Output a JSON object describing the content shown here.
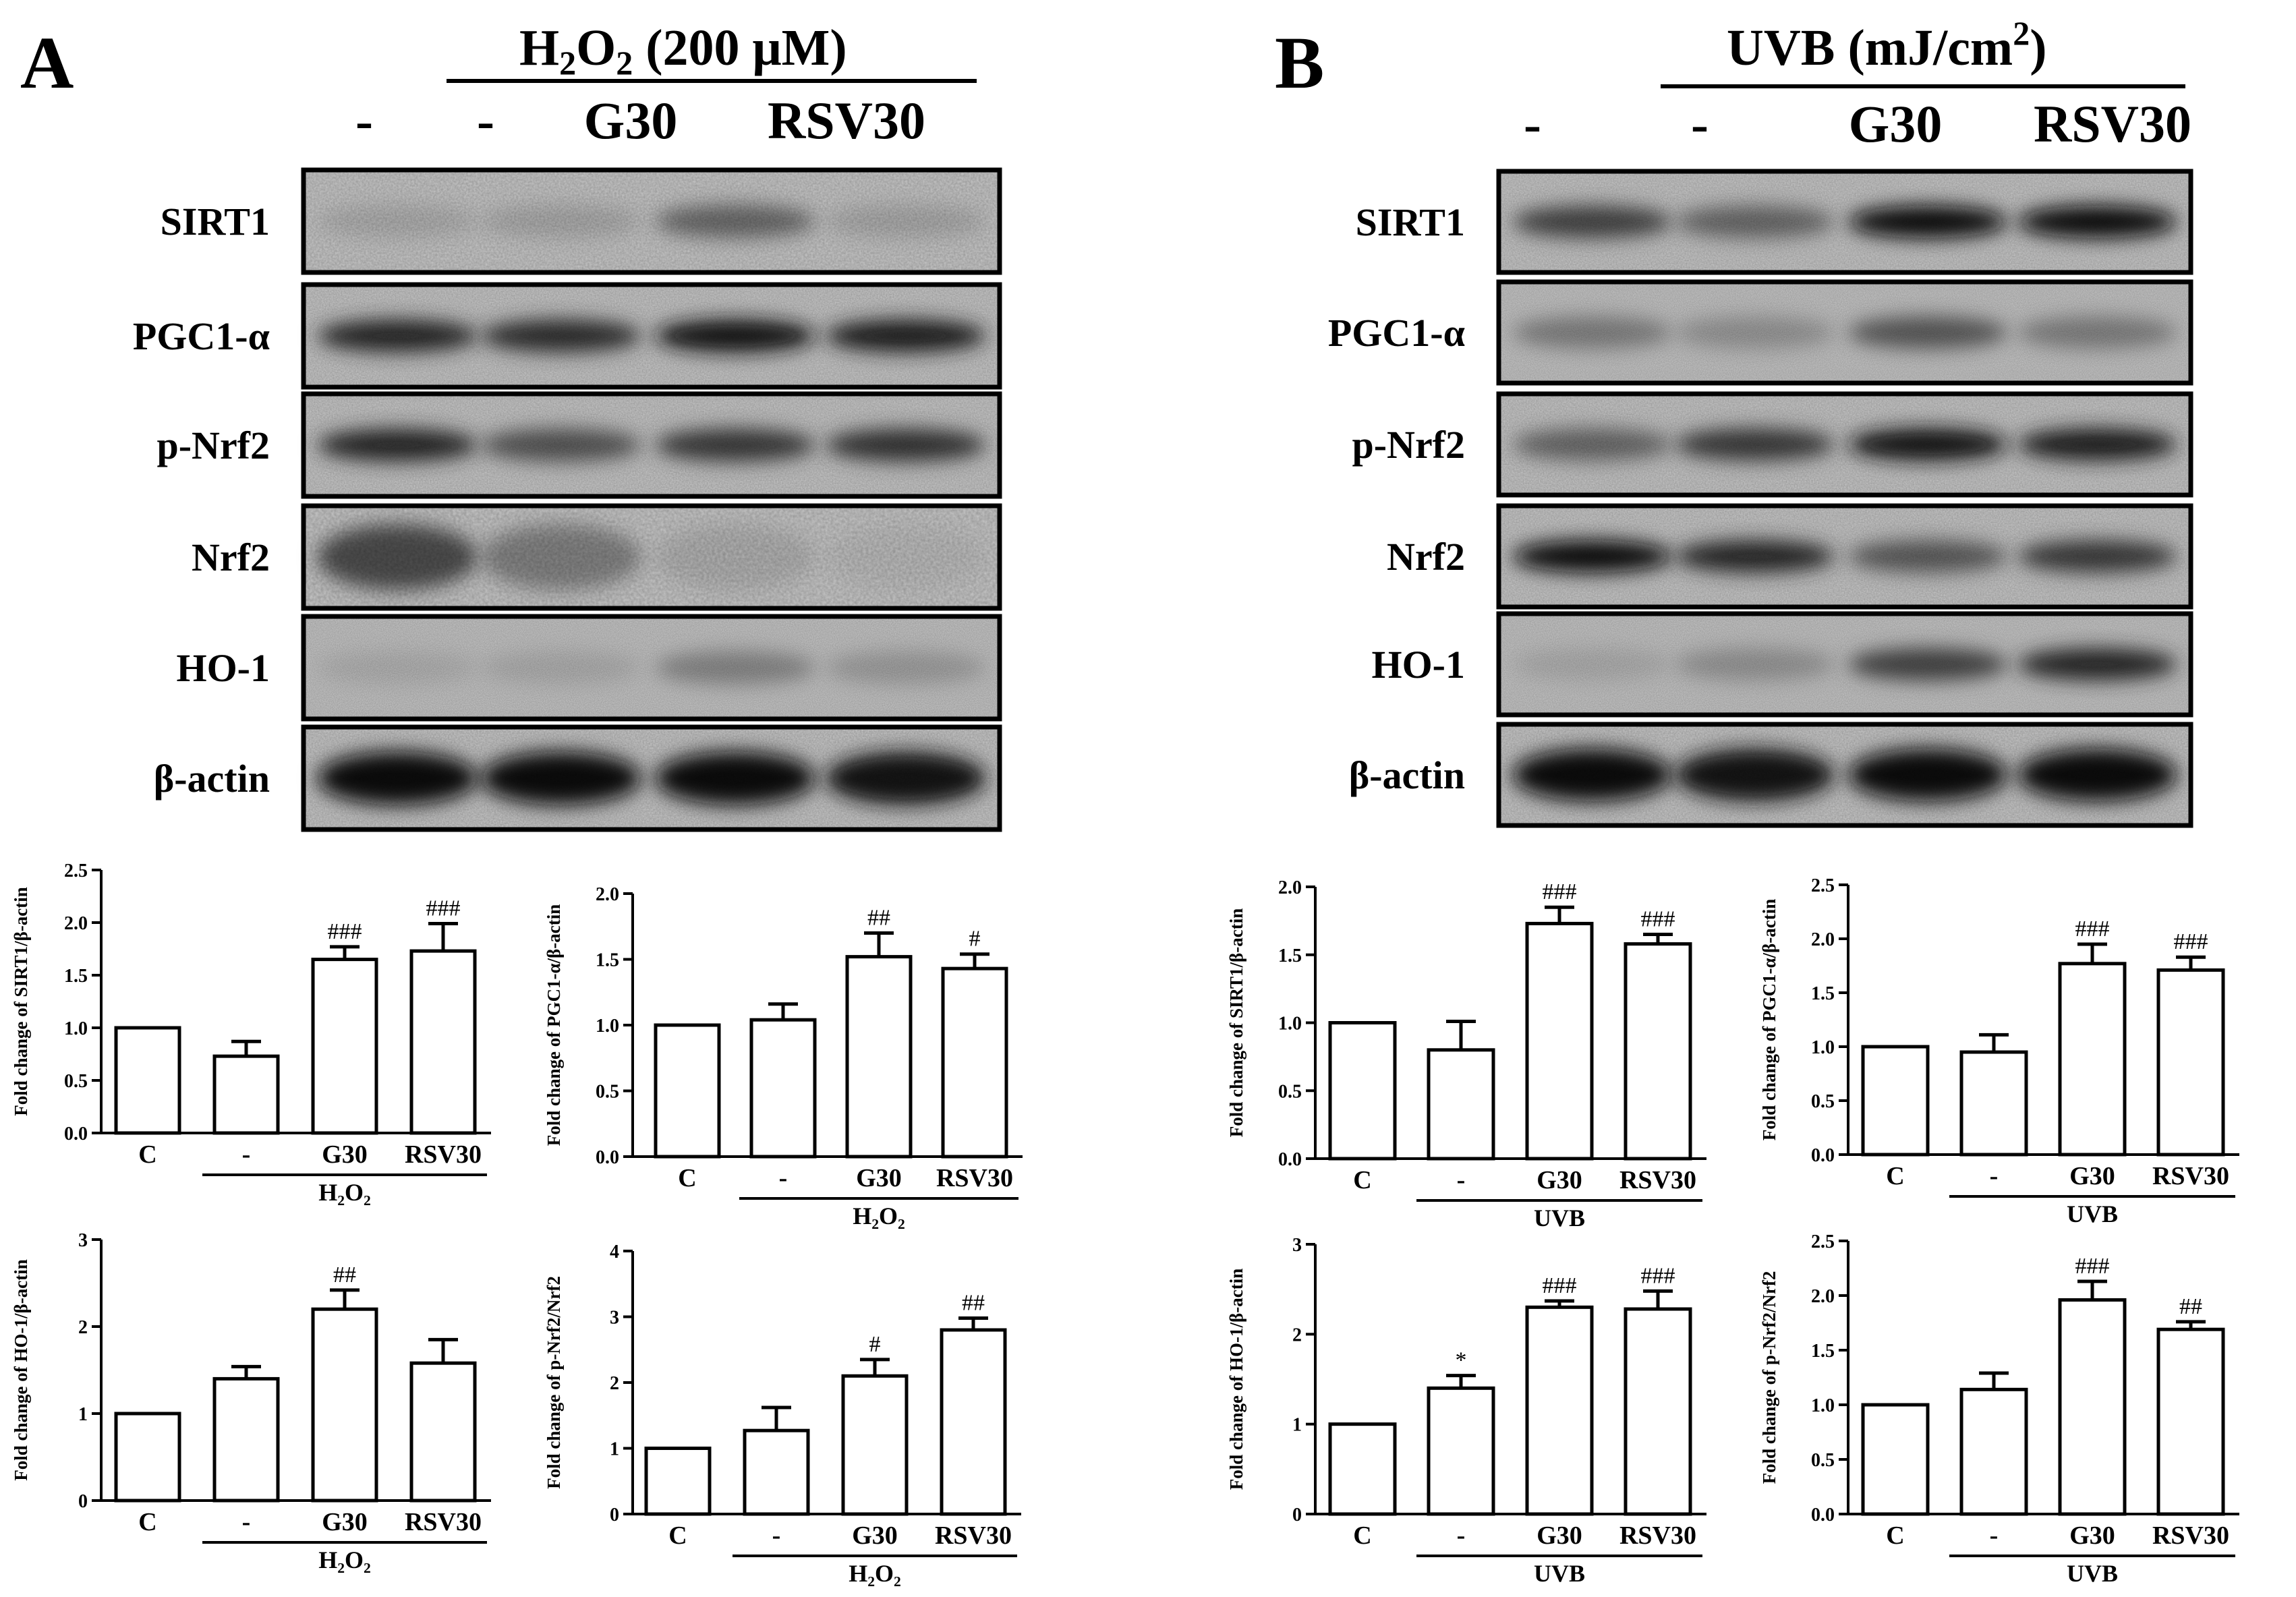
{
  "panels": [
    {
      "letter": "A",
      "treatment_main": "H",
      "treatment_sub1": "2",
      "treatment_mid": "O",
      "treatment_sub2": "2",
      "treatment_rest": " (200 μM)",
      "lane_labels": [
        "-",
        "-",
        "G30",
        "RSV30"
      ],
      "blots": [
        {
          "label": "SIRT1",
          "intensity": [
            0.22,
            0.25,
            0.55,
            0.25
          ],
          "grain": "fine"
        },
        {
          "label": "PGC1-α",
          "intensity": [
            0.85,
            0.82,
            0.95,
            0.9
          ],
          "grain": "normal"
        },
        {
          "label": "p-Nrf2",
          "intensity": [
            0.85,
            0.62,
            0.75,
            0.78
          ],
          "grain": "normal"
        },
        {
          "label": "Nrf2",
          "intensity": [
            0.65,
            0.45,
            0.2,
            0.12
          ],
          "grain": "diffuse"
        },
        {
          "label": "HO-1",
          "intensity": [
            0.18,
            0.2,
            0.42,
            0.3
          ],
          "grain": "noisy"
        },
        {
          "label": "β-actin",
          "intensity": [
            1.0,
            1.0,
            1.0,
            0.95
          ],
          "grain": "strong"
        }
      ]
    },
    {
      "letter": "B",
      "treatment_main": "UVB (mJ/cm",
      "treatment_sup": "2",
      "treatment_rest": ")",
      "lane_labels": [
        "-",
        "-",
        "G30",
        "RSV30"
      ],
      "blots": [
        {
          "label": "SIRT1",
          "intensity": [
            0.7,
            0.55,
            1.0,
            1.0
          ],
          "grain": "normal"
        },
        {
          "label": "PGC1-α",
          "intensity": [
            0.45,
            0.35,
            0.6,
            0.45
          ],
          "grain": "noisy"
        },
        {
          "label": "p-Nrf2",
          "intensity": [
            0.55,
            0.75,
            0.95,
            0.9
          ],
          "grain": "normal"
        },
        {
          "label": "Nrf2",
          "intensity": [
            1.0,
            0.85,
            0.6,
            0.75
          ],
          "grain": "normal"
        },
        {
          "label": "HO-1",
          "intensity": [
            0.2,
            0.35,
            0.7,
            0.85
          ],
          "grain": "noisy"
        },
        {
          "label": "β-actin",
          "intensity": [
            1.0,
            0.95,
            1.0,
            1.0
          ],
          "grain": "strong"
        }
      ]
    }
  ],
  "chart_data": [
    {
      "type": "bar",
      "panel": "A",
      "ylabel": "Fold change of SIRT1/β-actin",
      "categories": [
        "C",
        "-",
        "G30",
        "RSV30"
      ],
      "values": [
        1.0,
        0.73,
        1.65,
        1.73
      ],
      "errors": [
        0,
        0.14,
        0.12,
        0.26
      ],
      "annotations": [
        "",
        "",
        "###",
        "###"
      ],
      "ylim": [
        0,
        2.5
      ],
      "yticks": [
        "0.0",
        "0.5",
        "1.0",
        "1.5",
        "2.0",
        "2.5"
      ],
      "group_label": "H₂O₂"
    },
    {
      "type": "bar",
      "panel": "A",
      "ylabel": "Fold change of PGC1-α/β-actin",
      "categories": [
        "C",
        "-",
        "G30",
        "RSV30"
      ],
      "values": [
        1.0,
        1.04,
        1.52,
        1.43
      ],
      "errors": [
        0,
        0.12,
        0.18,
        0.11
      ],
      "annotations": [
        "",
        "",
        "##",
        "#"
      ],
      "ylim": [
        0,
        2.0
      ],
      "yticks": [
        "0.0",
        "0.5",
        "1.0",
        "1.5",
        "2.0"
      ],
      "group_label": "H₂O₂"
    },
    {
      "type": "bar",
      "panel": "A",
      "ylabel": "Fold change of HO-1/β-actin",
      "categories": [
        "C",
        "-",
        "G30",
        "RSV30"
      ],
      "values": [
        1.0,
        1.4,
        2.2,
        1.58
      ],
      "errors": [
        0,
        0.14,
        0.22,
        0.27
      ],
      "annotations": [
        "",
        "",
        "##",
        ""
      ],
      "ylim": [
        0,
        3
      ],
      "yticks": [
        "0",
        "1",
        "2",
        "3"
      ],
      "group_label": "H₂O₂"
    },
    {
      "type": "bar",
      "panel": "A",
      "ylabel": "Fold change of p-Nrf2/Nrf2",
      "categories": [
        "C",
        "-",
        "G30",
        "RSV30"
      ],
      "values": [
        1.0,
        1.27,
        2.1,
        2.8
      ],
      "errors": [
        0,
        0.35,
        0.25,
        0.18
      ],
      "annotations": [
        "",
        "",
        "#",
        "##"
      ],
      "ylim": [
        0,
        4
      ],
      "yticks": [
        "0",
        "1",
        "2",
        "3",
        "4"
      ],
      "group_label": "H₂O₂"
    },
    {
      "type": "bar",
      "panel": "B",
      "ylabel": "Fold change of SIRT1/β-actin",
      "categories": [
        "C",
        "-",
        "G30",
        "RSV30"
      ],
      "values": [
        1.0,
        0.8,
        1.73,
        1.58
      ],
      "errors": [
        0,
        0.21,
        0.12,
        0.07
      ],
      "annotations": [
        "",
        "",
        "###",
        "###"
      ],
      "ylim": [
        0,
        2.0
      ],
      "yticks": [
        "0.0",
        "0.5",
        "1.0",
        "1.5",
        "2.0"
      ],
      "group_label": "UVB"
    },
    {
      "type": "bar",
      "panel": "B",
      "ylabel": "Fold change of PGC1-α/β-actin",
      "categories": [
        "C",
        "-",
        "G30",
        "RSV30"
      ],
      "values": [
        1.0,
        0.95,
        1.77,
        1.71
      ],
      "errors": [
        0,
        0.16,
        0.18,
        0.12
      ],
      "annotations": [
        "",
        "",
        "###",
        "###"
      ],
      "ylim": [
        0,
        2.5
      ],
      "yticks": [
        "0.0",
        "0.5",
        "1.0",
        "1.5",
        "2.0",
        "2.5"
      ],
      "group_label": "UVB"
    },
    {
      "type": "bar",
      "panel": "B",
      "ylabel": "Fold change of HO-1/β-actin",
      "categories": [
        "C",
        "-",
        "G30",
        "RSV30"
      ],
      "values": [
        1.0,
        1.4,
        2.3,
        2.28
      ],
      "errors": [
        0,
        0.14,
        0.07,
        0.2
      ],
      "annotations": [
        "",
        "*",
        "###",
        "###"
      ],
      "ylim": [
        0,
        3
      ],
      "yticks": [
        "0",
        "1",
        "2",
        "3"
      ],
      "group_label": "UVB"
    },
    {
      "type": "bar",
      "panel": "B",
      "ylabel": "Fold change of p-Nrf2/Nrf2",
      "categories": [
        "C",
        "-",
        "G30",
        "RSV30"
      ],
      "values": [
        1.0,
        1.14,
        1.96,
        1.69
      ],
      "errors": [
        0,
        0.15,
        0.17,
        0.07
      ],
      "annotations": [
        "",
        "",
        "###",
        "##"
      ],
      "ylim": [
        0,
        2.5
      ],
      "yticks": [
        "0.0",
        "0.5",
        "1.0",
        "1.5",
        "2.0",
        "2.5"
      ],
      "group_label": "UVB"
    }
  ]
}
